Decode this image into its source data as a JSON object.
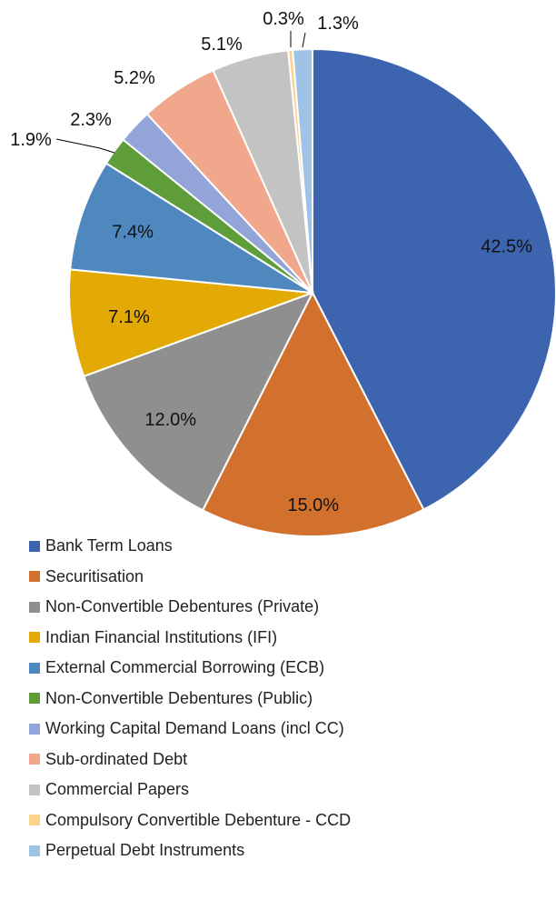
{
  "chart_data": {
    "type": "pie",
    "title": "",
    "start_angle_deg": 0,
    "direction": "clockwise",
    "series": [
      {
        "name": "Bank Term Loans",
        "value": 42.5,
        "label": "42.5%",
        "color": "#3D64AF"
      },
      {
        "name": "Securitisation",
        "value": 15.0,
        "label": "15.0%",
        "color": "#D2712E"
      },
      {
        "name": "Non-Convertible Debentures (Private)",
        "value": 12.0,
        "label": "12.0%",
        "color": "#8F8F8F"
      },
      {
        "name": "Indian Financial Institutions (IFI)",
        "value": 7.1,
        "label": "7.1%",
        "color": "#E3AA06"
      },
      {
        "name": "External Commercial Borrowing (ECB)",
        "value": 7.4,
        "label": "7.4%",
        "color": "#4F88BE"
      },
      {
        "name": "Non-Convertible Debentures (Public)",
        "value": 1.9,
        "label": "1.9%",
        "color": "#5F9D3B"
      },
      {
        "name": "Working Capital Demand Loans (incl CC)",
        "value": 2.3,
        "label": "2.3%",
        "color": "#93A5D8"
      },
      {
        "name": "Sub-ordinated Debt",
        "value": 5.2,
        "label": "5.2%",
        "color": "#F1A78C"
      },
      {
        "name": "Commercial Papers",
        "value": 5.1,
        "label": "5.1%",
        "color": "#C3C3C3"
      },
      {
        "name": "Compulsory Convertible Debenture - CCD",
        "value": 0.3,
        "label": "0.3%",
        "color": "#FDD28A"
      },
      {
        "name": "Perpetual Debt Instruments",
        "value": 1.3,
        "label": "1.3%",
        "color": "#9EC3E6"
      }
    ],
    "legend_position": "bottom"
  }
}
